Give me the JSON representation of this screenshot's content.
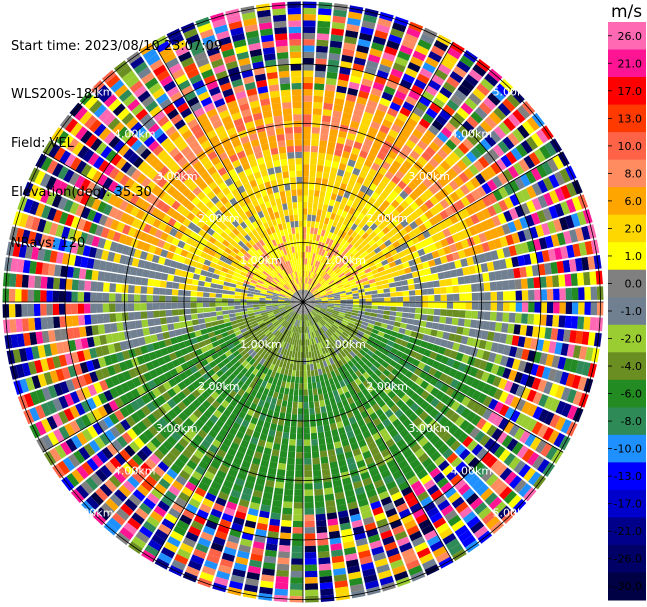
{
  "info": {
    "start_time": "Start time: 2023/08/10 23:07:09",
    "instrument": "WLS200s-181",
    "field": "Field: VEL",
    "elevation": "Elevation(deg): 35.30",
    "nrays": "NRays: 120"
  },
  "chart_data": {
    "type": "ppi",
    "field": "VEL",
    "units": "m/s",
    "nrays": 120,
    "elevation_deg": 35.3,
    "range_rings_km": [
      1.0,
      2.0,
      3.0,
      4.0,
      5.0
    ],
    "ring_labels": [
      "1.00km",
      "2.00km",
      "3.00km",
      "4.00km",
      "5.00km"
    ],
    "spoke_angles_deg": [
      0,
      30,
      60,
      90,
      120,
      150,
      180,
      210,
      240,
      270,
      300,
      330
    ],
    "max_range_km": 5.05,
    "colorbar": {
      "unit_label": "m/s",
      "ticks": [
        "26.0",
        "21.0",
        "17.0",
        "13.0",
        "10.0",
        "8.0",
        "6.0",
        "2.0",
        "1.0",
        "0.0",
        "-1.0",
        "-2.0",
        "-4.0",
        "-6.0",
        "-8.0",
        "-10.0",
        "-13.0",
        "-17.0",
        "-21.0",
        "-26.0",
        "-30.0"
      ],
      "colors": [
        "#ff69b4",
        "#ff1493",
        "#ff0000",
        "#ff3a00",
        "#ff6347",
        "#ff8c60",
        "#ffa500",
        "#ffd700",
        "#ffff00",
        "#808080",
        "#708090",
        "#9acd32",
        "#6b8e23",
        "#228b22",
        "#2e8b57",
        "#1e90ff",
        "#0000ff",
        "#0000cd",
        "#00008b",
        "#000066",
        "#000044"
      ]
    },
    "pattern": {
      "description_sectors": [
        {
          "from_deg": -90,
          "to_deg": 90,
          "dominant": "positive"
        },
        {
          "from_deg": 90,
          "to_deg": 270,
          "dominant": "negative"
        }
      ],
      "noise_beyond_km": 3.6
    }
  }
}
